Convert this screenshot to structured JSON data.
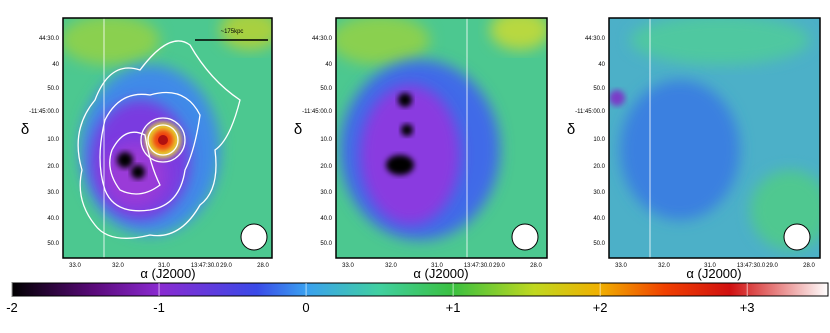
{
  "panels": [
    {
      "yticks": [
        "44:30.0",
        "40",
        "50.0",
        "-11:45:00.0",
        "10.0",
        "20.0",
        "30.0",
        "40.0",
        "50.0"
      ],
      "xticks": [
        "33.0",
        "32.0",
        "31.0",
        "13:47:30.0",
        "29.0",
        "28.0"
      ],
      "ylabel": "δ",
      "xlabel": "α (J2000)",
      "scale_label": "~175kpc"
    },
    {
      "yticks": [
        "44:30.0",
        "40",
        "50.0",
        "-11:45:00.0",
        "10.0",
        "20.0",
        "30.0",
        "40.0",
        "50.0"
      ],
      "xticks": [
        "33.0",
        "32.0",
        "31.0",
        "13:47:30.0",
        "29.0",
        "28.0"
      ],
      "ylabel": "δ",
      "xlabel": "α (J2000)"
    },
    {
      "yticks": [
        "44:30.0",
        "40",
        "50.0",
        "-11:45:00.0",
        "10.0",
        "20.0",
        "30.0",
        "40.0",
        "50.0"
      ],
      "xticks": [
        "33.0",
        "32.0",
        "31.0",
        "13:47:30.0",
        "29.0",
        "28.0"
      ],
      "ylabel": "δ",
      "xlabel": "α (J2000)"
    }
  ],
  "colorbar": {
    "lim": [
      -2,
      3.55
    ],
    "ticks": [
      -2,
      -1,
      0,
      {
        "value": 1,
        "label": "+1"
      },
      {
        "value": 2,
        "label": "+2"
      },
      {
        "value": 3,
        "label": "+3"
      }
    ]
  }
}
